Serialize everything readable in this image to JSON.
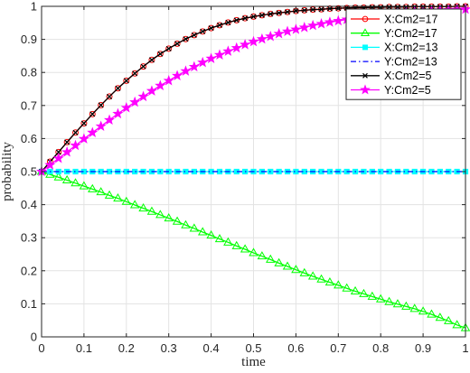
{
  "chart_data": {
    "type": "line",
    "title": "",
    "xlabel": "time",
    "ylabel": "probability",
    "xlim": [
      0,
      1
    ],
    "ylim": [
      0,
      1
    ],
    "xticks": [
      "0",
      "0.1",
      "0.2",
      "0.3",
      "0.4",
      "0.5",
      "0.6",
      "0.7",
      "0.8",
      "0.9",
      "1"
    ],
    "yticks": [
      "0",
      "0.1",
      "0.2",
      "0.3",
      "0.4",
      "0.5",
      "0.6",
      "0.7",
      "0.8",
      "0.9",
      "1"
    ],
    "grid": true,
    "legend_position": "top-right",
    "x": [
      0,
      0.02,
      0.04,
      0.06,
      0.08,
      0.1,
      0.12,
      0.14,
      0.16,
      0.18,
      0.2,
      0.22,
      0.24,
      0.26,
      0.28,
      0.3,
      0.32,
      0.34,
      0.36,
      0.38,
      0.4,
      0.42,
      0.44,
      0.46,
      0.48,
      0.5,
      0.52,
      0.54,
      0.56,
      0.58,
      0.6,
      0.62,
      0.64,
      0.66,
      0.68,
      0.7,
      0.72,
      0.74,
      0.76,
      0.78,
      0.8,
      0.82,
      0.84,
      0.86,
      0.88,
      0.9,
      0.92,
      0.94,
      0.96,
      0.98,
      1.0
    ],
    "series": [
      {
        "name": "X:Cm2=17",
        "color": "#ff0000",
        "line_style": "solid",
        "marker": "circle",
        "values": [
          0.5,
          0.53,
          0.559,
          0.589,
          0.618,
          0.646,
          0.674,
          0.701,
          0.727,
          0.752,
          0.775,
          0.797,
          0.818,
          0.838,
          0.856,
          0.872,
          0.887,
          0.901,
          0.913,
          0.924,
          0.934,
          0.943,
          0.951,
          0.958,
          0.964,
          0.969,
          0.973,
          0.977,
          0.98,
          0.983,
          0.986,
          0.988,
          0.99,
          0.991,
          0.993,
          0.994,
          0.995,
          0.996,
          0.996,
          0.997,
          0.997,
          0.998,
          0.998,
          0.998,
          0.999,
          0.999,
          0.999,
          0.999,
          0.999,
          1.0,
          1.0
        ]
      },
      {
        "name": "Y:Cm2=17",
        "color": "#00ff00",
        "line_style": "solid",
        "marker": "triangle",
        "values": [
          0.5,
          0.491,
          0.483,
          0.474,
          0.465,
          0.456,
          0.447,
          0.438,
          0.428,
          0.419,
          0.409,
          0.399,
          0.389,
          0.379,
          0.369,
          0.359,
          0.349,
          0.338,
          0.328,
          0.317,
          0.307,
          0.296,
          0.286,
          0.275,
          0.265,
          0.254,
          0.244,
          0.234,
          0.223,
          0.213,
          0.203,
          0.193,
          0.183,
          0.174,
          0.165,
          0.156,
          0.147,
          0.138,
          0.13,
          0.122,
          0.114,
          0.106,
          0.099,
          0.092,
          0.085,
          0.077,
          0.068,
          0.058,
          0.048,
          0.036,
          0.027
        ]
      },
      {
        "name": "X:Cm2=13",
        "color": "#00ffff",
        "line_style": "solid",
        "marker": "square",
        "values": [
          0.5,
          0.5,
          0.5,
          0.5,
          0.5,
          0.5,
          0.5,
          0.5,
          0.5,
          0.5,
          0.5,
          0.5,
          0.5,
          0.5,
          0.5,
          0.5,
          0.5,
          0.5,
          0.5,
          0.5,
          0.5,
          0.5,
          0.5,
          0.5,
          0.5,
          0.5,
          0.5,
          0.5,
          0.5,
          0.5,
          0.5,
          0.5,
          0.5,
          0.5,
          0.5,
          0.5,
          0.5,
          0.5,
          0.5,
          0.5,
          0.5,
          0.5,
          0.5,
          0.5,
          0.5,
          0.5,
          0.5,
          0.5,
          0.5,
          0.5,
          0.5
        ]
      },
      {
        "name": "Y:Cm2=13",
        "color": "#0000ff",
        "line_style": "dashdot",
        "marker": "none",
        "values": [
          0.5,
          0.5,
          0.5,
          0.5,
          0.5,
          0.5,
          0.5,
          0.5,
          0.5,
          0.5,
          0.5,
          0.5,
          0.5,
          0.5,
          0.5,
          0.5,
          0.5,
          0.5,
          0.5,
          0.5,
          0.5,
          0.5,
          0.5,
          0.5,
          0.5,
          0.5,
          0.5,
          0.5,
          0.5,
          0.5,
          0.5,
          0.5,
          0.5,
          0.5,
          0.5,
          0.5,
          0.5,
          0.5,
          0.5,
          0.5,
          0.5,
          0.5,
          0.5,
          0.5,
          0.5,
          0.5,
          0.5,
          0.5,
          0.5,
          0.5,
          0.5
        ]
      },
      {
        "name": "X:Cm2=5",
        "color": "#000000",
        "line_style": "solid",
        "marker": "x",
        "values": [
          0.5,
          0.53,
          0.559,
          0.589,
          0.618,
          0.646,
          0.674,
          0.701,
          0.727,
          0.752,
          0.775,
          0.797,
          0.818,
          0.838,
          0.856,
          0.872,
          0.887,
          0.901,
          0.913,
          0.924,
          0.934,
          0.943,
          0.951,
          0.958,
          0.964,
          0.969,
          0.973,
          0.977,
          0.98,
          0.983,
          0.986,
          0.988,
          0.99,
          0.991,
          0.993,
          0.994,
          0.995,
          0.996,
          0.996,
          0.997,
          0.997,
          0.998,
          0.998,
          0.998,
          0.999,
          0.999,
          0.999,
          0.999,
          0.999,
          1.0,
          1.0
        ]
      },
      {
        "name": "Y:Cm2=5",
        "color": "#ff00ff",
        "line_style": "solid",
        "marker": "star",
        "values": [
          0.5,
          0.52,
          0.54,
          0.559,
          0.579,
          0.599,
          0.618,
          0.637,
          0.656,
          0.675,
          0.693,
          0.71,
          0.727,
          0.744,
          0.76,
          0.775,
          0.79,
          0.804,
          0.817,
          0.83,
          0.842,
          0.853,
          0.864,
          0.874,
          0.884,
          0.893,
          0.901,
          0.909,
          0.917,
          0.924,
          0.93,
          0.936,
          0.942,
          0.947,
          0.952,
          0.956,
          0.96,
          0.964,
          0.968,
          0.971,
          0.974,
          0.976,
          0.979,
          0.981,
          0.983,
          0.985,
          0.986,
          0.988,
          0.989,
          0.99,
          0.991
        ]
      }
    ]
  }
}
